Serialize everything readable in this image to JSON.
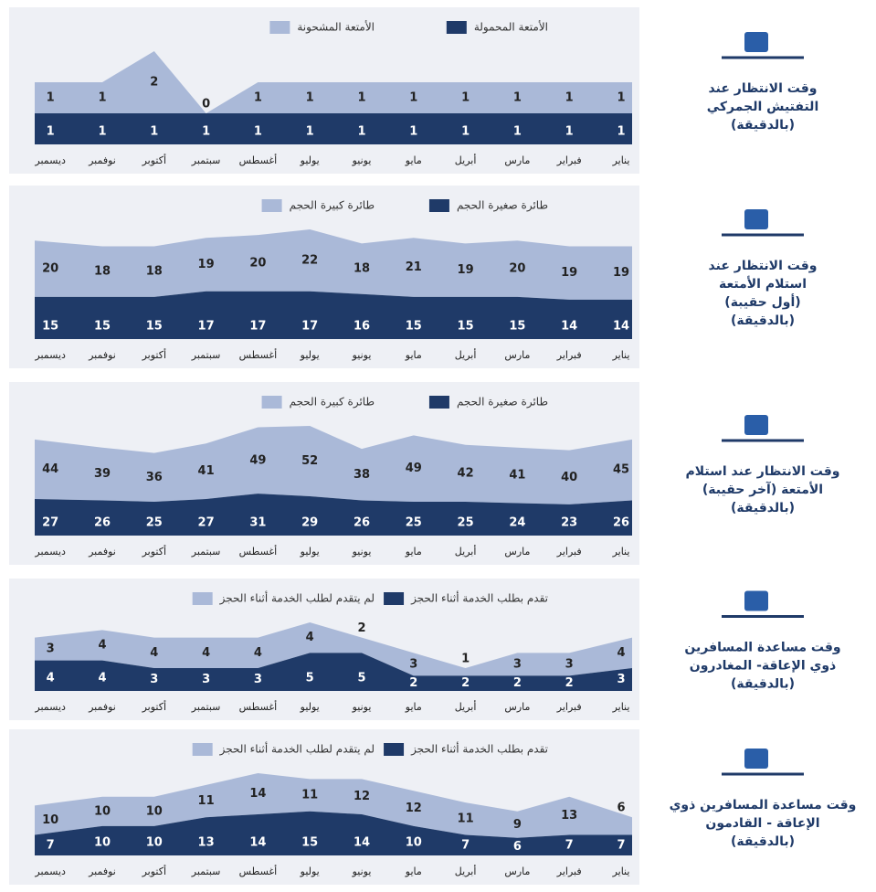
{
  "chart_data": [
    {
      "type": "area",
      "title": [
        "وقت الانتظار عند",
        "التفتيش الجمركي",
        "(بالدقيقة)"
      ],
      "categories": [
        "يناير",
        "فبراير",
        "مارس",
        "أبريل",
        "مايو",
        "يونيو",
        "يوليو",
        "أغسطس",
        "سبتمبر",
        "أكتوبر",
        "نوفمبر",
        "ديسمبر"
      ],
      "series": [
        {
          "name": "الأمتعة المحمولة",
          "color": "#1f3a68",
          "values": [
            1,
            1,
            1,
            1,
            1,
            1,
            1,
            1,
            1,
            1,
            1,
            1
          ]
        },
        {
          "name": "الأمتعة المشحونة",
          "color": "#aab9d8",
          "values": [
            1,
            1,
            1,
            1,
            1,
            1,
            1,
            1,
            0,
            2,
            1,
            1
          ]
        }
      ]
    },
    {
      "type": "area",
      "title": [
        "وقت الانتظار عند",
        "استلام الأمتعة",
        "(أول حقيبة)",
        "(بالدقيقة)"
      ],
      "categories": [
        "يناير",
        "فبراير",
        "مارس",
        "أبريل",
        "مايو",
        "يونيو",
        "يوليو",
        "أغسطس",
        "سبتمبر",
        "أكتوبر",
        "نوفمبر",
        "ديسمبر"
      ],
      "series": [
        {
          "name": "طائرة صغيرة الحجم",
          "color": "#1f3a68",
          "values": [
            14,
            14,
            15,
            15,
            15,
            16,
            17,
            17,
            17,
            15,
            15,
            15
          ]
        },
        {
          "name": "طائرة كبيرة الحجم",
          "color": "#aab9d8",
          "values": [
            19,
            19,
            20,
            19,
            21,
            18,
            22,
            20,
            19,
            18,
            18,
            20
          ]
        }
      ]
    },
    {
      "type": "area",
      "title": [
        "وقت الانتظار عند استلام",
        "الأمتعة (آخر حقيبة)",
        "(بالدقيقة)"
      ],
      "categories": [
        "يناير",
        "فبراير",
        "مارس",
        "أبريل",
        "مايو",
        "يونيو",
        "يوليو",
        "أغسطس",
        "سبتمبر",
        "أكتوبر",
        "نوفمبر",
        "ديسمبر"
      ],
      "series": [
        {
          "name": "طائرة صغيرة الحجم",
          "color": "#1f3a68",
          "values": [
            26,
            23,
            24,
            25,
            25,
            26,
            29,
            31,
            27,
            25,
            26,
            27
          ]
        },
        {
          "name": "طائرة كبيرة الحجم",
          "color": "#aab9d8",
          "values": [
            45,
            40,
            41,
            42,
            49,
            38,
            52,
            49,
            41,
            36,
            39,
            44
          ]
        }
      ]
    },
    {
      "type": "area",
      "title": [
        "وقت مساعدة المسافرين",
        "ذوي الإعاقة- المغادرون",
        "(بالدقيقة)"
      ],
      "categories": [
        "يناير",
        "فبراير",
        "مارس",
        "أبريل",
        "مايو",
        "يونيو",
        "يوليو",
        "أغسطس",
        "سبتمبر",
        "أكتوبر",
        "نوفمبر",
        "ديسمبر"
      ],
      "series": [
        {
          "name": "تقدم بطلب الخدمة أثناء الحجز",
          "color": "#1f3a68",
          "values": [
            3,
            2,
            2,
            2,
            2,
            5,
            5,
            3,
            3,
            3,
            4,
            4
          ]
        },
        {
          "name": "لم يتقدم لطلب الخدمة أثناء الحجز",
          "color": "#aab9d8",
          "values": [
            4,
            3,
            3,
            1,
            3,
            2,
            4,
            4,
            4,
            4,
            4,
            3
          ]
        }
      ]
    },
    {
      "type": "area",
      "title": [
        "وقت مساعدة المسافرين ذوي",
        "الإعاقة - القادمون",
        "(بالدقيقة)"
      ],
      "categories": [
        "يناير",
        "فبراير",
        "مارس",
        "أبريل",
        "مايو",
        "يونيو",
        "يوليو",
        "أغسطس",
        "سبتمبر",
        "أكتوبر",
        "نوفمبر",
        "ديسمبر"
      ],
      "series": [
        {
          "name": "تقدم بطلب الخدمة أثناء الحجز",
          "color": "#1f3a68",
          "values": [
            7,
            7,
            6,
            7,
            10,
            14,
            15,
            14,
            13,
            10,
            10,
            7
          ]
        },
        {
          "name": "لم يتقدم لطلب الخدمة أثناء الحجز",
          "color": "#aab9d8",
          "values": [
            6,
            13,
            9,
            11,
            12,
            12,
            11,
            14,
            11,
            10,
            10,
            10
          ]
        }
      ]
    }
  ]
}
